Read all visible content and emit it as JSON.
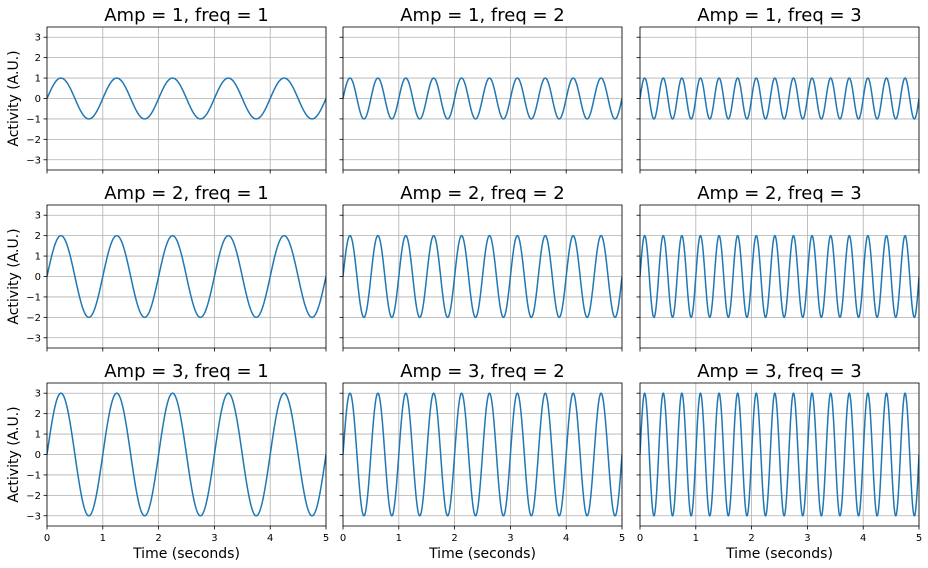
{
  "colors": {
    "line": "#1f77b4",
    "grid": "#b0b0b0",
    "axes": "#000000"
  },
  "chart_data": {
    "type": "line",
    "layout": "3x3 small multiples, shared x and y axes",
    "function": "Activity = Amp * sin(2*pi*freq*t)",
    "xlabel": "Time (seconds)",
    "ylabel": "Activity (A.U.)",
    "xlim": [
      0,
      5
    ],
    "ylim": [
      -3.5,
      3.5
    ],
    "xticks": [
      "0",
      "1",
      "2",
      "3",
      "4",
      "5"
    ],
    "yticks": [
      "−3",
      "−2",
      "−1",
      "0",
      "1",
      "2",
      "3"
    ],
    "grid": true,
    "panels": [
      {
        "title": "Amp = 1, freq = 1",
        "amp": 1,
        "freq": 1
      },
      {
        "title": "Amp = 1, freq = 2",
        "amp": 1,
        "freq": 2
      },
      {
        "title": "Amp = 1, freq = 3",
        "amp": 1,
        "freq": 3
      },
      {
        "title": "Amp = 2, freq = 1",
        "amp": 2,
        "freq": 1
      },
      {
        "title": "Amp = 2, freq = 2",
        "amp": 2,
        "freq": 2
      },
      {
        "title": "Amp = 2, freq = 3",
        "amp": 2,
        "freq": 3
      },
      {
        "title": "Amp = 3, freq = 1",
        "amp": 3,
        "freq": 1
      },
      {
        "title": "Amp = 3, freq = 2",
        "amp": 3,
        "freq": 2
      },
      {
        "title": "Amp = 3, freq = 3",
        "amp": 3,
        "freq": 3
      }
    ]
  }
}
